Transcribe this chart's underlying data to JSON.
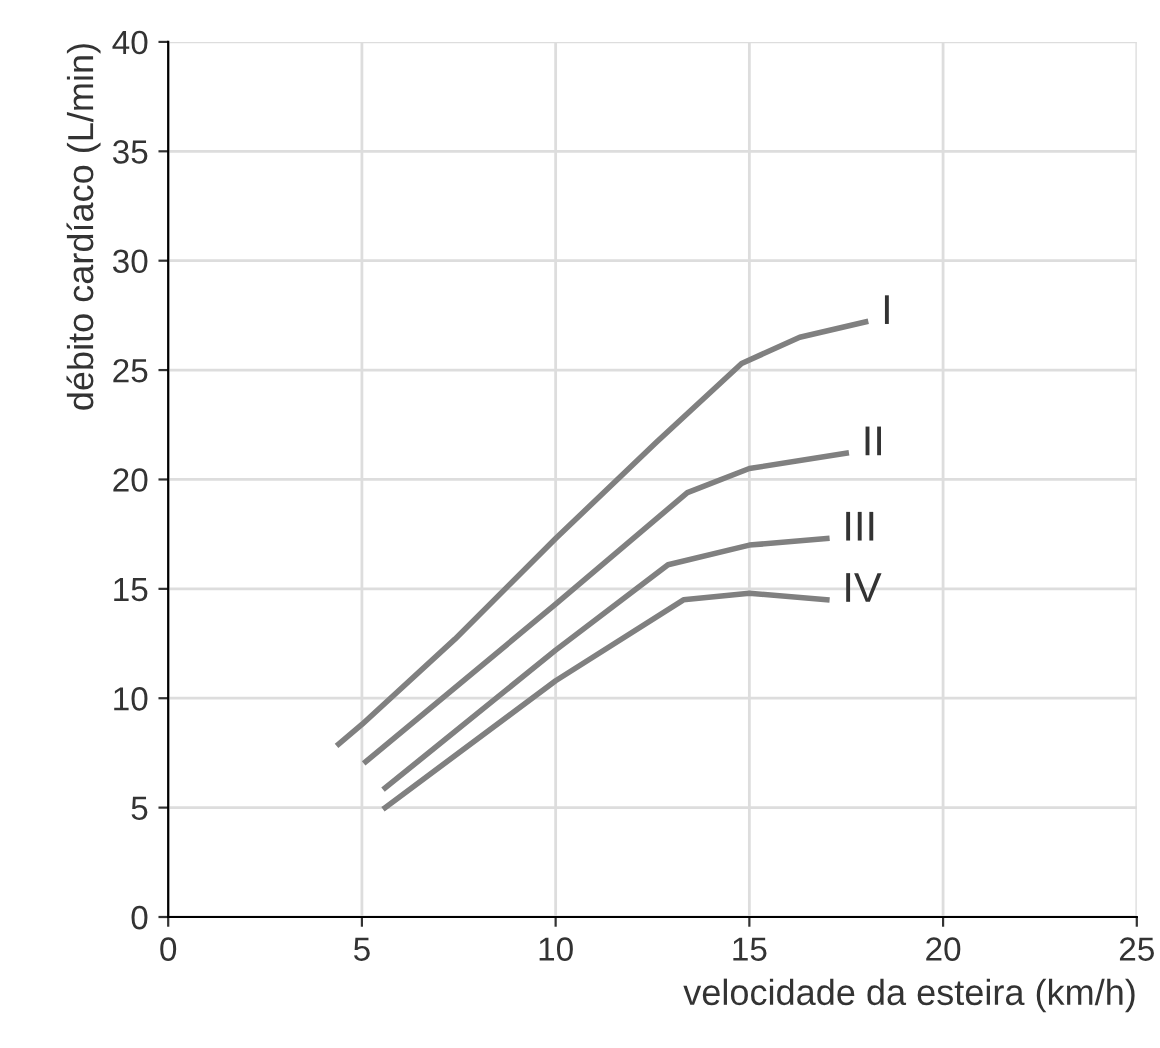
{
  "chart_data": {
    "type": "line",
    "xlabel": "velocidade da esteira (km/h)",
    "ylabel": "débito cardíaco (L/min)",
    "xlim": [
      0,
      25
    ],
    "xticks": [
      0,
      5,
      10,
      15,
      20,
      25
    ],
    "ylim": [
      0,
      40
    ],
    "yticks": [
      0,
      5,
      10,
      15,
      20,
      25,
      30,
      35,
      40
    ],
    "grid": true,
    "marker": "none",
    "line_style": "solid",
    "series": [
      {
        "name": "I",
        "color": "#808080",
        "x": [
          4.4,
          5,
          7.4,
          10,
          12.6,
          14.8,
          16.3,
          18
        ],
        "values": [
          7.9,
          8.8,
          12.7,
          17.3,
          21.7,
          25.3,
          26.5,
          27.2
        ]
      },
      {
        "name": "II",
        "color": "#808080",
        "x": [
          5.1,
          10,
          13.4,
          15,
          17.5
        ],
        "values": [
          7.1,
          14.3,
          19.4,
          20.5,
          21.2
        ]
      },
      {
        "name": "III",
        "color": "#808080",
        "x": [
          5.6,
          10,
          12.9,
          15,
          17
        ],
        "values": [
          5.9,
          12.2,
          16.1,
          17.0,
          17.3
        ]
      },
      {
        "name": "IV",
        "color": "#808080",
        "x": [
          5.6,
          10,
          13.3,
          15,
          17
        ],
        "values": [
          5.0,
          10.8,
          14.5,
          14.8,
          14.5
        ]
      }
    ]
  }
}
